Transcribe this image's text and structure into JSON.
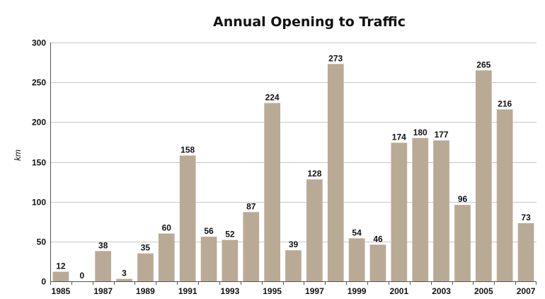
{
  "chart_data": {
    "type": "bar",
    "title": "Annual Opening to Traffic",
    "xlabel": "",
    "ylabel": "km",
    "categories": [
      "1985",
      "1986",
      "1987",
      "1988",
      "1989",
      "1990",
      "1991",
      "1992",
      "1993",
      "1994",
      "1995",
      "1996",
      "1997",
      "1998",
      "1999",
      "2000",
      "2001",
      "2002",
      "2003",
      "2004",
      "2005",
      "2006",
      "2007"
    ],
    "x_tick_labels": [
      "1985",
      "1987",
      "1989",
      "1991",
      "1993",
      "1995",
      "1997",
      "1999",
      "2001",
      "2003",
      "2005",
      "2007"
    ],
    "values": [
      12,
      0,
      38,
      3,
      35,
      60,
      158,
      56,
      52,
      87,
      224,
      39,
      128,
      273,
      54,
      46,
      174,
      180,
      177,
      96,
      265,
      216,
      73
    ],
    "ylim": [
      0,
      300
    ],
    "y_ticks": [
      0,
      50,
      100,
      150,
      200,
      250,
      300
    ],
    "grid": true,
    "bar_color": "#b9aa96",
    "grid_color": "#c8c8c8"
  }
}
